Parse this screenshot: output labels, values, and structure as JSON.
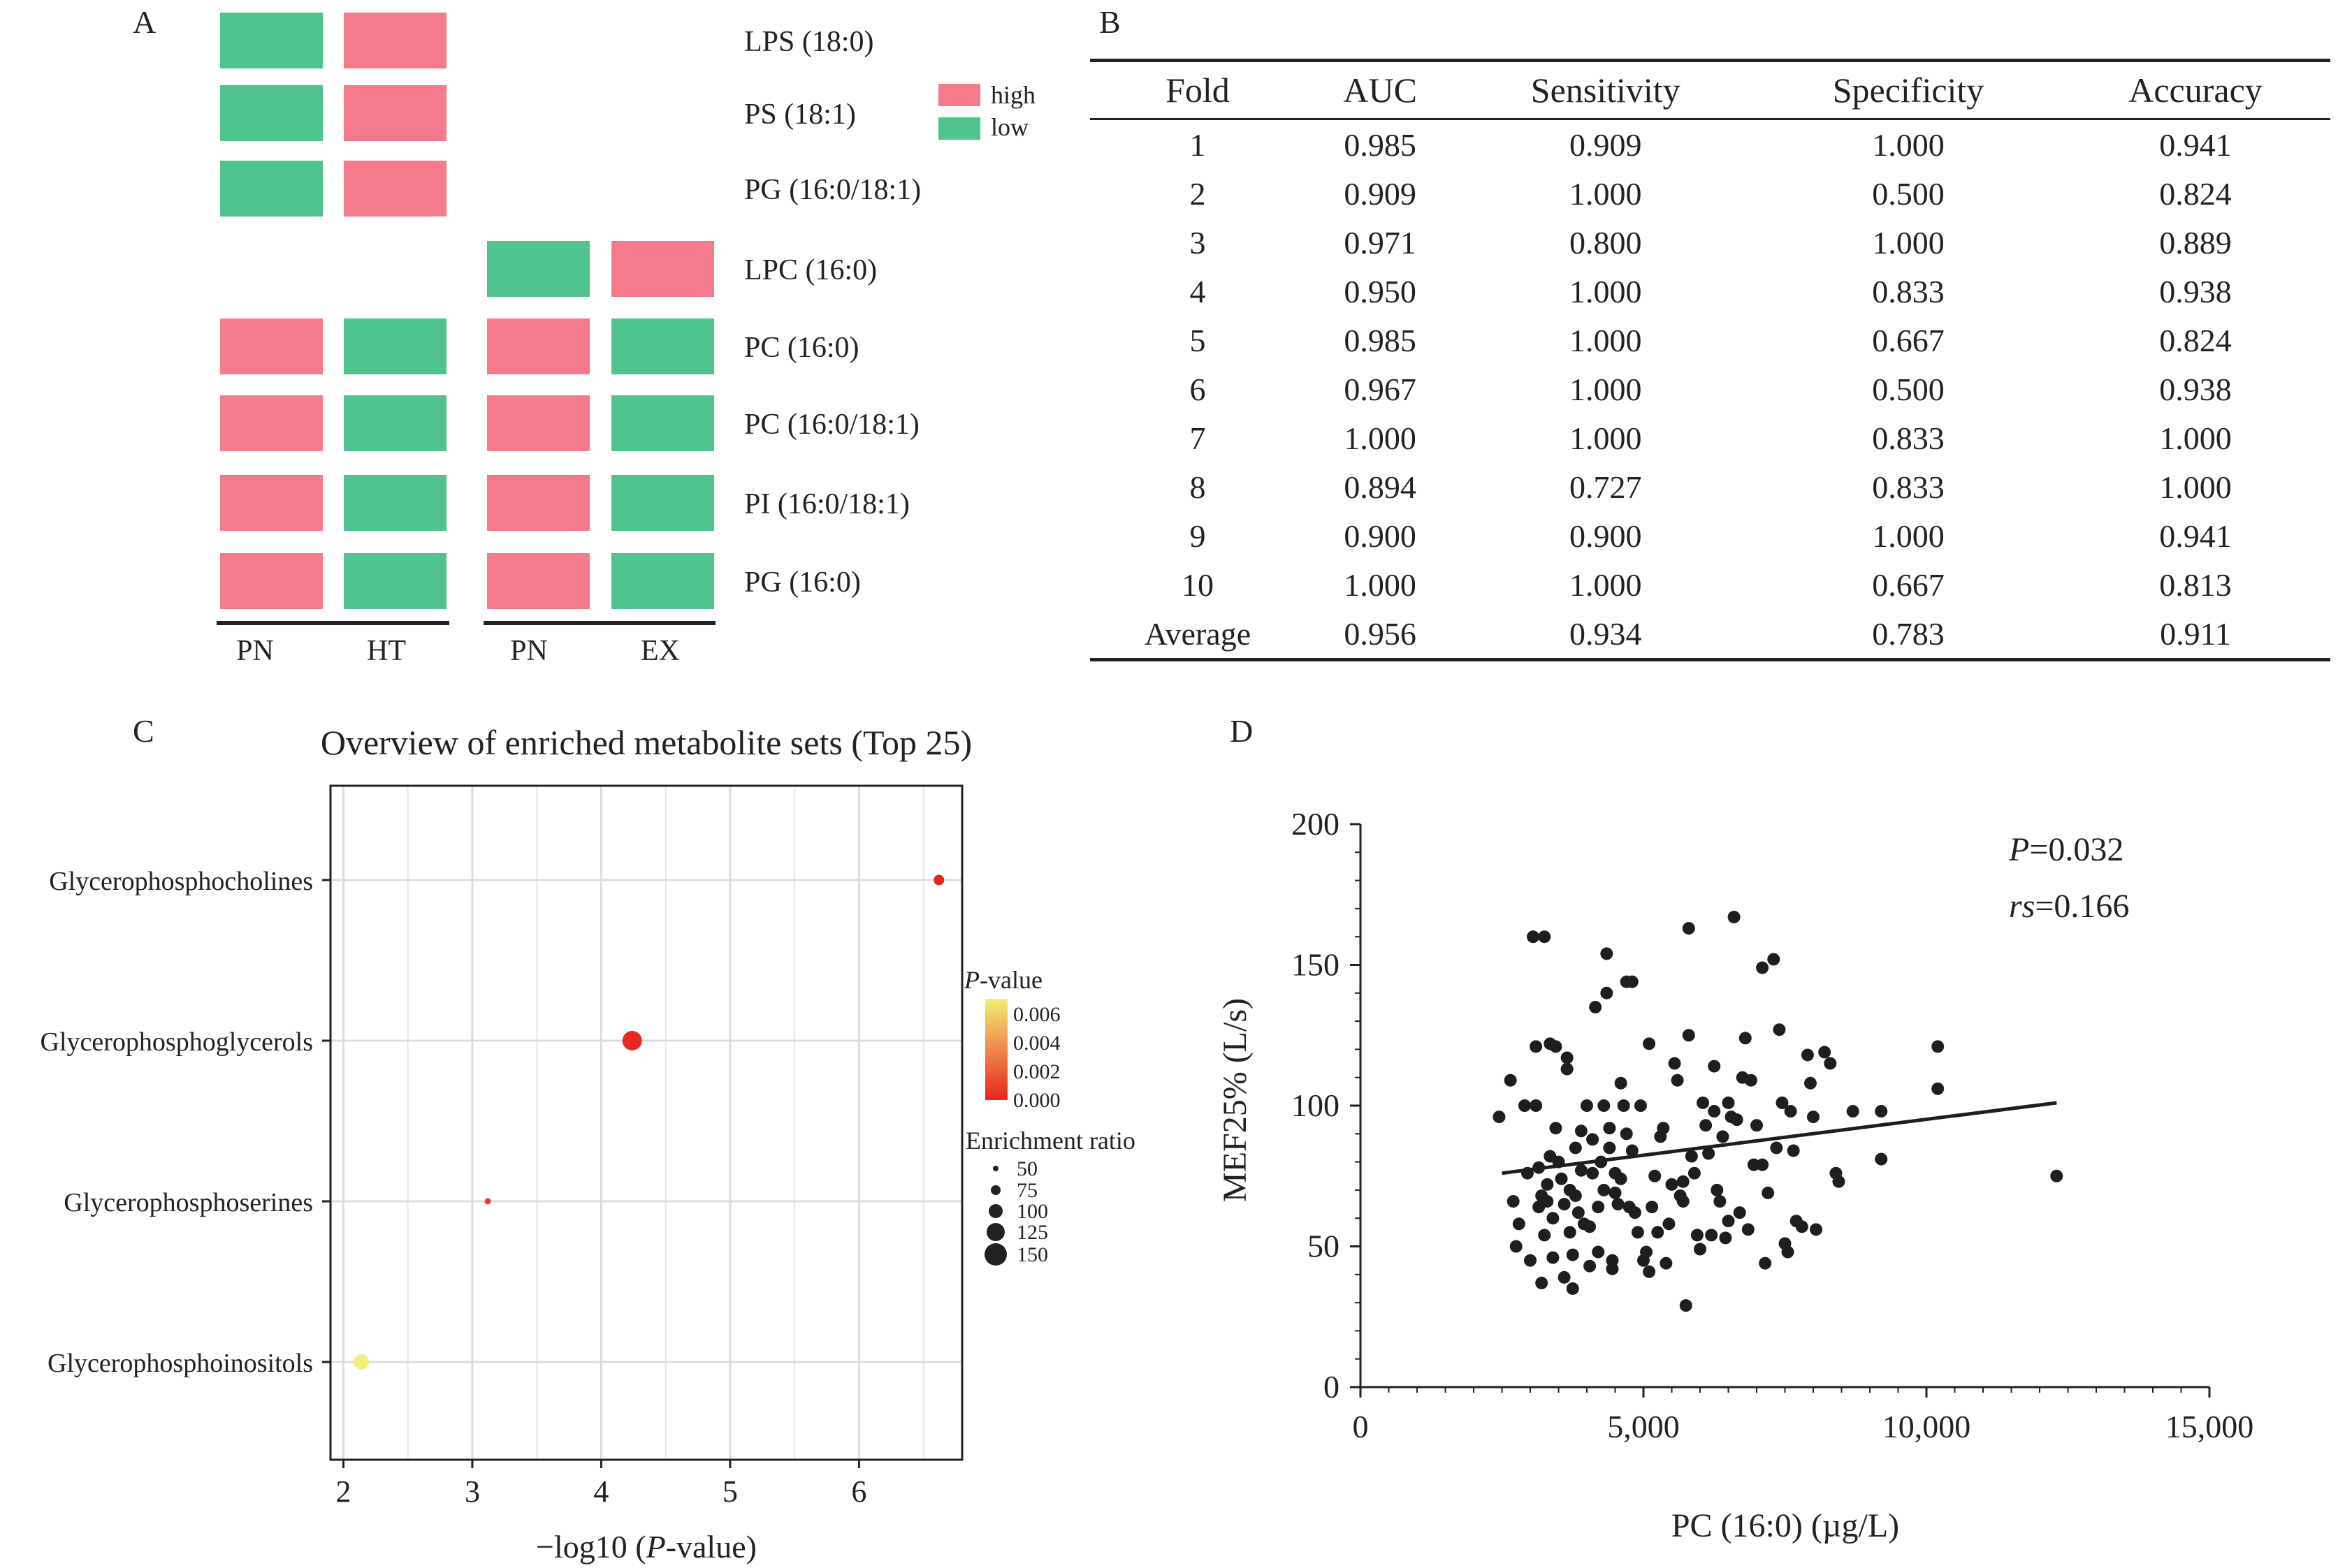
{
  "panel_a": {
    "label": "A",
    "legend": {
      "high": "high",
      "low": "low"
    },
    "colors": {
      "high": "#f47a8c",
      "low": "#4fc48f",
      "axis": "#222222"
    },
    "rows": [
      "LPS (18:0)",
      "PS (18:1)",
      "PG (16:0/18:1)",
      "LPC (16:0)",
      "PC (16:0)",
      "PC (16:0/18:1)",
      "PI (16:0/18:1)",
      "PG (16:0)"
    ],
    "group1": {
      "columns": [
        "PN",
        "HT"
      ],
      "cells": [
        [
          "low",
          "high"
        ],
        [
          "low",
          "high"
        ],
        [
          "low",
          "high"
        ],
        null,
        [
          "high",
          "low"
        ],
        [
          "high",
          "low"
        ],
        [
          "high",
          "low"
        ],
        [
          "high",
          "low"
        ]
      ]
    },
    "group2": {
      "columns": [
        "PN",
        "EX"
      ],
      "cells": [
        null,
        null,
        null,
        [
          "low",
          "high"
        ],
        [
          "high",
          "low"
        ],
        [
          "high",
          "low"
        ],
        [
          "high",
          "low"
        ],
        [
          "high",
          "low"
        ]
      ]
    }
  },
  "panel_b": {
    "label": "B",
    "headers": [
      "Fold",
      "AUC",
      "Sensitivity",
      "Specificity",
      "Accuracy"
    ],
    "rows": [
      [
        "1",
        "0.985",
        "0.909",
        "1.000",
        "0.941"
      ],
      [
        "2",
        "0.909",
        "1.000",
        "0.500",
        "0.824"
      ],
      [
        "3",
        "0.971",
        "0.800",
        "1.000",
        "0.889"
      ],
      [
        "4",
        "0.950",
        "1.000",
        "0.833",
        "0.938"
      ],
      [
        "5",
        "0.985",
        "1.000",
        "0.667",
        "0.824"
      ],
      [
        "6",
        "0.967",
        "1.000",
        "0.500",
        "0.938"
      ],
      [
        "7",
        "1.000",
        "1.000",
        "0.833",
        "1.000"
      ],
      [
        "8",
        "0.894",
        "0.727",
        "0.833",
        "1.000"
      ],
      [
        "9",
        "0.900",
        "0.900",
        "1.000",
        "0.941"
      ],
      [
        "10",
        "1.000",
        "1.000",
        "0.667",
        "0.813"
      ],
      [
        "Average",
        "0.956",
        "0.934",
        "0.783",
        "0.911"
      ]
    ]
  },
  "panel_c": {
    "label": "C",
    "legend_pvalue_title_prefix": "P",
    "legend_pvalue_title_suffix": "-value",
    "legend_pvalue_ticks": [
      "0.006",
      "0.004",
      "0.002",
      "0.000"
    ],
    "legend_size_title": "Enrichment ratio",
    "legend_size_ticks": [
      "50",
      "75",
      "100",
      "125",
      "150"
    ],
    "xlabel_prefix": "−log10 (",
    "xlabel_italic": "P",
    "xlabel_suffix": "-value)",
    "colors": {
      "low_p": "#e8241f",
      "high_p": "#f3ee78",
      "grid": "#e6e6e6",
      "frame": "#222222"
    }
  },
  "panel_d": {
    "label": "D",
    "annotation_p_italic": "P",
    "annotation_p_value": "=0.032",
    "annotation_rs_italic": "rs",
    "annotation_rs_value": "=0.166",
    "colors": {
      "point": "#1e1e1e",
      "line": "#1e1e1e"
    }
  },
  "chart_data": [
    {
      "type": "bar",
      "panel": "C",
      "chart_kind": "bubble",
      "title": "Overview of enriched metabolite sets (Top 25)",
      "xlabel": "−log10 (P-value)",
      "xlim": [
        1.9,
        6.8
      ],
      "xticks": [
        2,
        3,
        4,
        5,
        6
      ],
      "categories": [
        "Glycerophosphocholines",
        "Glycerophosphoglycerols",
        "Glycerophosphoserines",
        "Glycerophosphoinositols"
      ],
      "series": [
        {
          "name": "−log10 (P-value)",
          "values": [
            6.62,
            4.24,
            3.12,
            2.14
          ]
        },
        {
          "name": "Enrichment ratio",
          "values": [
            75,
            140,
            45,
            110
          ]
        },
        {
          "name": "P-value",
          "values": [
            0.0,
            0.0001,
            0.0008,
            0.0072
          ]
        }
      ],
      "grid": true
    },
    {
      "type": "scatter",
      "panel": "D",
      "xlabel": "PC (16:0) (µg/L)",
      "ylabel": "MEF25% (L/s)",
      "xlim": [
        0,
        15000
      ],
      "ylim": [
        0,
        200
      ],
      "xticks": [
        0,
        5000,
        10000,
        15000
      ],
      "xtick_labels": [
        "0",
        "5,000",
        "10,000",
        "15,000"
      ],
      "yticks": [
        0,
        50,
        100,
        150,
        200
      ],
      "fit_line": {
        "x": [
          2500,
          12300
        ],
        "y": [
          76,
          101
        ]
      },
      "annotations": [
        "P=0.032",
        "rs=0.166"
      ],
      "points": [
        [
          2450,
          96
        ],
        [
          2650,
          109
        ],
        [
          2700,
          66
        ],
        [
          2750,
          50
        ],
        [
          2800,
          58
        ],
        [
          2900,
          100
        ],
        [
          2950,
          76
        ],
        [
          3000,
          45
        ],
        [
          3050,
          160
        ],
        [
          3100,
          100
        ],
        [
          3100,
          121
        ],
        [
          3150,
          78
        ],
        [
          3150,
          64
        ],
        [
          3200,
          37
        ],
        [
          3200,
          68
        ],
        [
          3250,
          160
        ],
        [
          3250,
          54
        ],
        [
          3300,
          72
        ],
        [
          3300,
          66
        ],
        [
          3350,
          122
        ],
        [
          3350,
          82
        ],
        [
          3400,
          60
        ],
        [
          3400,
          46
        ],
        [
          3450,
          92
        ],
        [
          3450,
          121
        ],
        [
          3500,
          80
        ],
        [
          3550,
          74
        ],
        [
          3600,
          39
        ],
        [
          3600,
          65
        ],
        [
          3650,
          117
        ],
        [
          3650,
          113
        ],
        [
          3700,
          70
        ],
        [
          3700,
          55
        ],
        [
          3750,
          47
        ],
        [
          3750,
          35
        ],
        [
          3800,
          85
        ],
        [
          3800,
          68
        ],
        [
          3850,
          62
        ],
        [
          3900,
          91
        ],
        [
          3900,
          77
        ],
        [
          3950,
          58
        ],
        [
          4000,
          100
        ],
        [
          4050,
          57
        ],
        [
          4050,
          43
        ],
        [
          4100,
          88
        ],
        [
          4100,
          76
        ],
        [
          4150,
          135
        ],
        [
          4200,
          48
        ],
        [
          4200,
          64
        ],
        [
          4250,
          80
        ],
        [
          4300,
          100
        ],
        [
          4300,
          70
        ],
        [
          4350,
          140
        ],
        [
          4350,
          154
        ],
        [
          4400,
          92
        ],
        [
          4400,
          85
        ],
        [
          4450,
          45
        ],
        [
          4450,
          42
        ],
        [
          4500,
          69
        ],
        [
          4500,
          76
        ],
        [
          4550,
          65
        ],
        [
          4600,
          108
        ],
        [
          4600,
          74
        ],
        [
          4650,
          100
        ],
        [
          4700,
          144
        ],
        [
          4700,
          90
        ],
        [
          4750,
          64
        ],
        [
          4800,
          84
        ],
        [
          4800,
          144
        ],
        [
          4850,
          62
        ],
        [
          4900,
          55
        ],
        [
          4950,
          100
        ],
        [
          5000,
          45
        ],
        [
          5050,
          48
        ],
        [
          5100,
          122
        ],
        [
          5100,
          41
        ],
        [
          5150,
          64
        ],
        [
          5200,
          75
        ],
        [
          5250,
          55
        ],
        [
          5300,
          89
        ],
        [
          5350,
          92
        ],
        [
          5400,
          44
        ],
        [
          5450,
          58
        ],
        [
          5500,
          72
        ],
        [
          5550,
          115
        ],
        [
          5600,
          109
        ],
        [
          5650,
          68
        ],
        [
          5700,
          73
        ],
        [
          5700,
          66
        ],
        [
          5750,
          29
        ],
        [
          5800,
          163
        ],
        [
          5800,
          125
        ],
        [
          5850,
          82
        ],
        [
          5900,
          76
        ],
        [
          5950,
          54
        ],
        [
          6000,
          49
        ],
        [
          6050,
          101
        ],
        [
          6100,
          93
        ],
        [
          6150,
          83
        ],
        [
          6200,
          54
        ],
        [
          6250,
          98
        ],
        [
          6250,
          114
        ],
        [
          6300,
          70
        ],
        [
          6350,
          66
        ],
        [
          6400,
          89
        ],
        [
          6450,
          53
        ],
        [
          6500,
          101
        ],
        [
          6500,
          59
        ],
        [
          6550,
          96
        ],
        [
          6600,
          167
        ],
        [
          6650,
          95
        ],
        [
          6700,
          62
        ],
        [
          6750,
          110
        ],
        [
          6800,
          124
        ],
        [
          6850,
          56
        ],
        [
          6900,
          109
        ],
        [
          6950,
          79
        ],
        [
          7000,
          93
        ],
        [
          7100,
          79
        ],
        [
          7100,
          149
        ],
        [
          7150,
          44
        ],
        [
          7200,
          69
        ],
        [
          7300,
          152
        ],
        [
          7350,
          85
        ],
        [
          7400,
          127
        ],
        [
          7450,
          101
        ],
        [
          7500,
          51
        ],
        [
          7550,
          48
        ],
        [
          7600,
          98
        ],
        [
          7650,
          84
        ],
        [
          7700,
          59
        ],
        [
          7800,
          57
        ],
        [
          7900,
          118
        ],
        [
          7950,
          108
        ],
        [
          8000,
          96
        ],
        [
          8050,
          56
        ],
        [
          8200,
          119
        ],
        [
          8300,
          115
        ],
        [
          8400,
          76
        ],
        [
          8450,
          73
        ],
        [
          8700,
          98
        ],
        [
          9200,
          98
        ],
        [
          9200,
          81
        ],
        [
          10200,
          121
        ],
        [
          10200,
          106
        ],
        [
          12300,
          75
        ]
      ]
    }
  ]
}
